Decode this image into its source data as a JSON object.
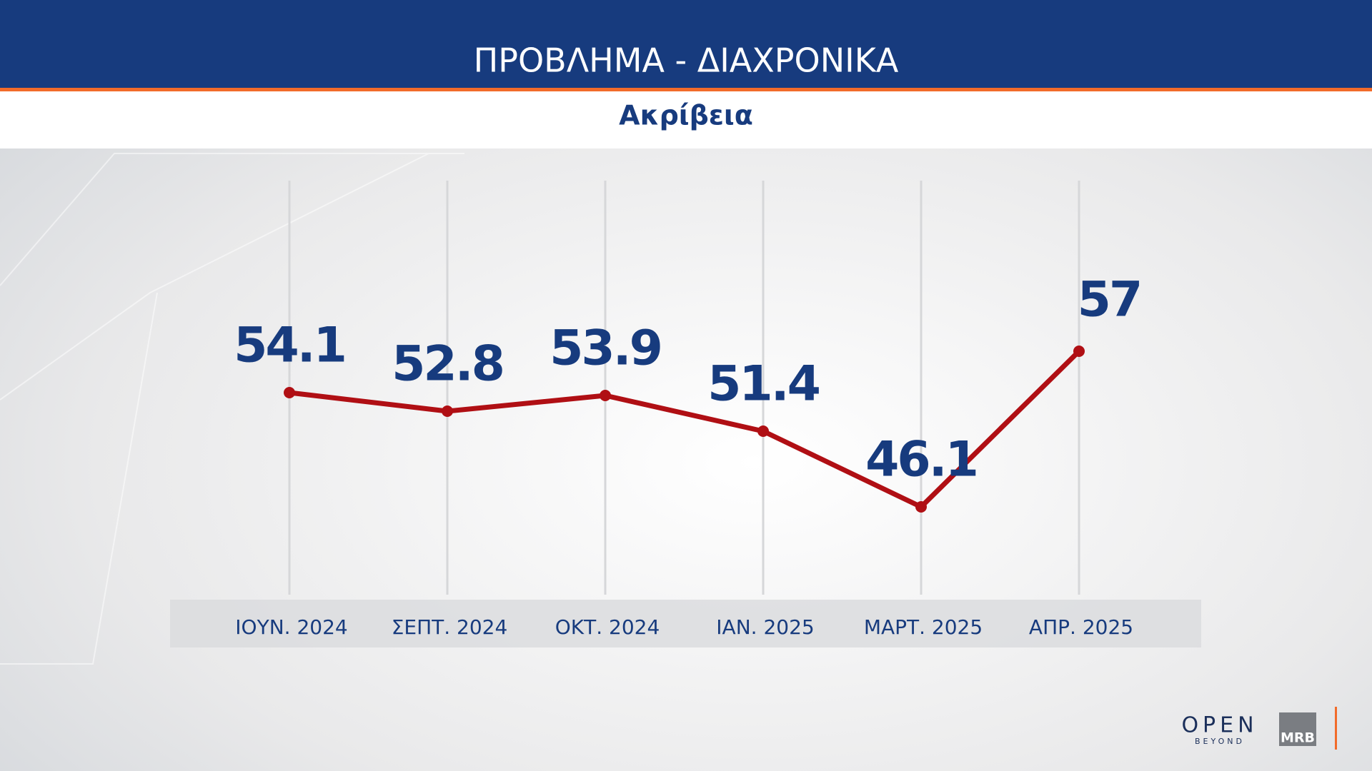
{
  "chart_data": {
    "type": "line",
    "title": "ΠΡΟΒΛΗΜΑ - ΔΙΑΧΡΟΝΙΚΑ",
    "subtitle": "Ακρίβεια",
    "categories": [
      "ΙΟΥΝ. 2024",
      "ΣΕΠΤ. 2024",
      "ΟΚΤ. 2024",
      "ΙΑΝ. 2025",
      "ΜΑΡΤ. 2025",
      "ΑΠΡ. 2025"
    ],
    "series": [
      {
        "color": "#b00f14",
        "values": [
          54.1,
          52.8,
          53.9,
          51.4,
          46.1,
          57
        ]
      }
    ]
  },
  "logos": {
    "open": "OPEN",
    "open_sub": "BEYOND",
    "mrb": "MRB"
  }
}
